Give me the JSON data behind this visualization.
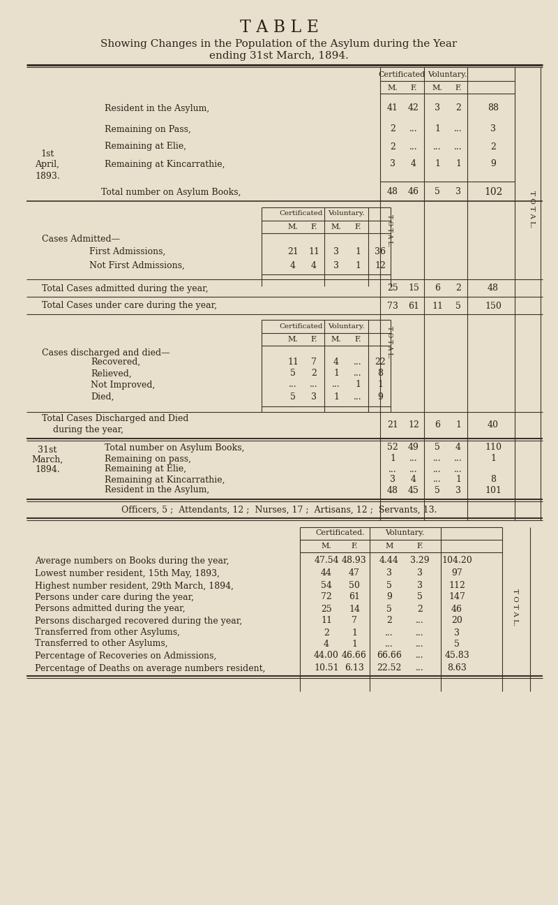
{
  "bg_color": "#e8e0cc",
  "text_color": "#2a2218",
  "title": "T A B L E",
  "subtitle1": "Showing Changes in the Population of the Asylum during the Year",
  "subtitle2": "ending 31st March, 1894.",
  "section1_rows": [
    {
      "label": "Resident in the Asylum,",
      "cert_m": "41",
      "cert_f": "42",
      "vol_m": "3",
      "vol_f": "2",
      "total": "88"
    },
    {
      "label": "Remaining on Pass,",
      "cert_m": "2",
      "cert_f": "...",
      "vol_m": "1",
      "vol_f": "...",
      "total": "3"
    },
    {
      "label": "Remaining at Elie,",
      "cert_m": "2",
      "cert_f": "...",
      "vol_m": "...",
      "vol_f": "...",
      "total": "2"
    },
    {
      "label": "Remaining at Kincarrathie,",
      "cert_m": "3",
      "cert_f": "4",
      "vol_m": "1",
      "vol_f": "1",
      "total": "9"
    }
  ],
  "section1_total_label": "Total number on Asylum Books,",
  "section1_total": {
    "cert_m": "48",
    "cert_f": "46",
    "vol_m": "5",
    "vol_f": "3",
    "total": "102"
  },
  "admitted_rows": [
    {
      "label": "First Admissions,",
      "cert_m": "21",
      "cert_f": "11",
      "vol_m": "3",
      "vol_f": "1",
      "total": "36"
    },
    {
      "label": "Not First Admissions,",
      "cert_m": "4",
      "cert_f": "4",
      "vol_m": "3",
      "vol_f": "1",
      "total": "12"
    }
  ],
  "total_admitted": {
    "cert_m": "25",
    "cert_f": "15",
    "vol_m": "6",
    "vol_f": "2",
    "total": "48"
  },
  "total_under_care": {
    "cert_m": "73",
    "cert_f": "61",
    "vol_m": "11",
    "vol_f": "5",
    "total": "150"
  },
  "discharged_rows": [
    {
      "label": "Recovered,",
      "cert_m": "11",
      "cert_f": "7",
      "vol_m": "4",
      "vol_f": "...",
      "total": "22"
    },
    {
      "label": "Relieved,",
      "cert_m": "5",
      "cert_f": "2",
      "vol_m": "1",
      "vol_f": "...",
      "total": "8"
    },
    {
      "label": "Not Improved,",
      "cert_m": "...",
      "cert_f": "...",
      "vol_m": "...",
      "vol_f": "1",
      "total": "1"
    },
    {
      "label": "Died,",
      "cert_m": "5",
      "cert_f": "3",
      "vol_m": "1",
      "vol_f": "...",
      "total": "9"
    }
  ],
  "total_discharged": {
    "cert_m": "21",
    "cert_f": "12",
    "vol_m": "6",
    "vol_f": "1",
    "total": "40"
  },
  "section_march_rows": [
    {
      "label": "Total number on Asylum Books,",
      "cert_m": "52",
      "cert_f": "49",
      "vol_m": "5",
      "vol_f": "4",
      "total": "110"
    },
    {
      "label": "Remaining on pass,",
      "cert_m": "1",
      "cert_f": "...",
      "vol_m": "...",
      "vol_f": "...",
      "total": "1"
    },
    {
      "label": "Remaining at Elie,",
      "cert_m": "...",
      "cert_f": "...",
      "vol_m": "...",
      "vol_f": "...",
      "total": ""
    },
    {
      "label": "Remaining at Kincarrathie,",
      "cert_m": "3",
      "cert_f": "4",
      "vol_m": "...",
      "vol_f": "1",
      "total": "8"
    },
    {
      "label": "Resident in the Asylum,",
      "cert_m": "48",
      "cert_f": "45",
      "vol_m": "5",
      "vol_f": "3",
      "total": "101"
    }
  ],
  "officers_line": "Officers, 5 ;  Attendants, 12 ;  Nurses, 17 ;  Artisans, 12 ;  Servants, 13.",
  "stats_rows": [
    {
      "label": "Average numbers on Books during the year,",
      "dots": "...",
      "cert_m": "47.54",
      "cert_f": "48.93",
      "vol_m": "4.44",
      "vol_f": "3.29",
      "total": "104.20"
    },
    {
      "label": "Lowest number resident, 15th May, 1893,",
      "dots": "...",
      "cert_m": "44",
      "cert_f": "47",
      "vol_m": "3",
      "vol_f": "3",
      "total": "97"
    },
    {
      "label": "Highest number resident, 29th March, 1894,",
      "dots": "",
      "cert_m": "54",
      "cert_f": "50",
      "vol_m": "5",
      "vol_f": "3",
      "total": "112"
    },
    {
      "label": "Persons under care during the year,",
      "dots": "...",
      "cert_m": "72",
      "cert_f": "61",
      "vol_m": "9",
      "vol_f": "5",
      "total": "147"
    },
    {
      "label": "Persons admitted during the year,",
      "dots": "...",
      "cert_m": "25",
      "cert_f": "14",
      "vol_m": "5",
      "vol_f": "2",
      "total": "46"
    },
    {
      "label": "Persons discharged recovered during the year,",
      "dots": "...",
      "cert_m": "11",
      "cert_f": "7",
      "vol_m": "2",
      "vol_f": "...",
      "total": "20"
    },
    {
      "label": "Transferred from other Asylums,",
      "dots": "...",
      "cert_m": "2",
      "cert_f": "1",
      "vol_m": "...",
      "vol_f": "...",
      "total": "3"
    },
    {
      "label": "Transferred to other Asylums,",
      "dots": "...",
      "cert_m": "4",
      "cert_f": "1",
      "vol_m": "...",
      "vol_f": "...",
      "total": "5"
    },
    {
      "label": "Percentage of Recoveries on Admissions,",
      "dots": "...",
      "cert_m": "44.00",
      "cert_f": "46.66",
      "vol_m": "66.66",
      "vol_f": "...",
      "total": "45.83"
    },
    {
      "label": "Percentage of Deaths on average numbers resident,",
      "dots": "",
      "cert_m": "10.51",
      "cert_f": "6.13",
      "vol_m": "22.52",
      "vol_f": "...",
      "total": "8.63"
    }
  ]
}
